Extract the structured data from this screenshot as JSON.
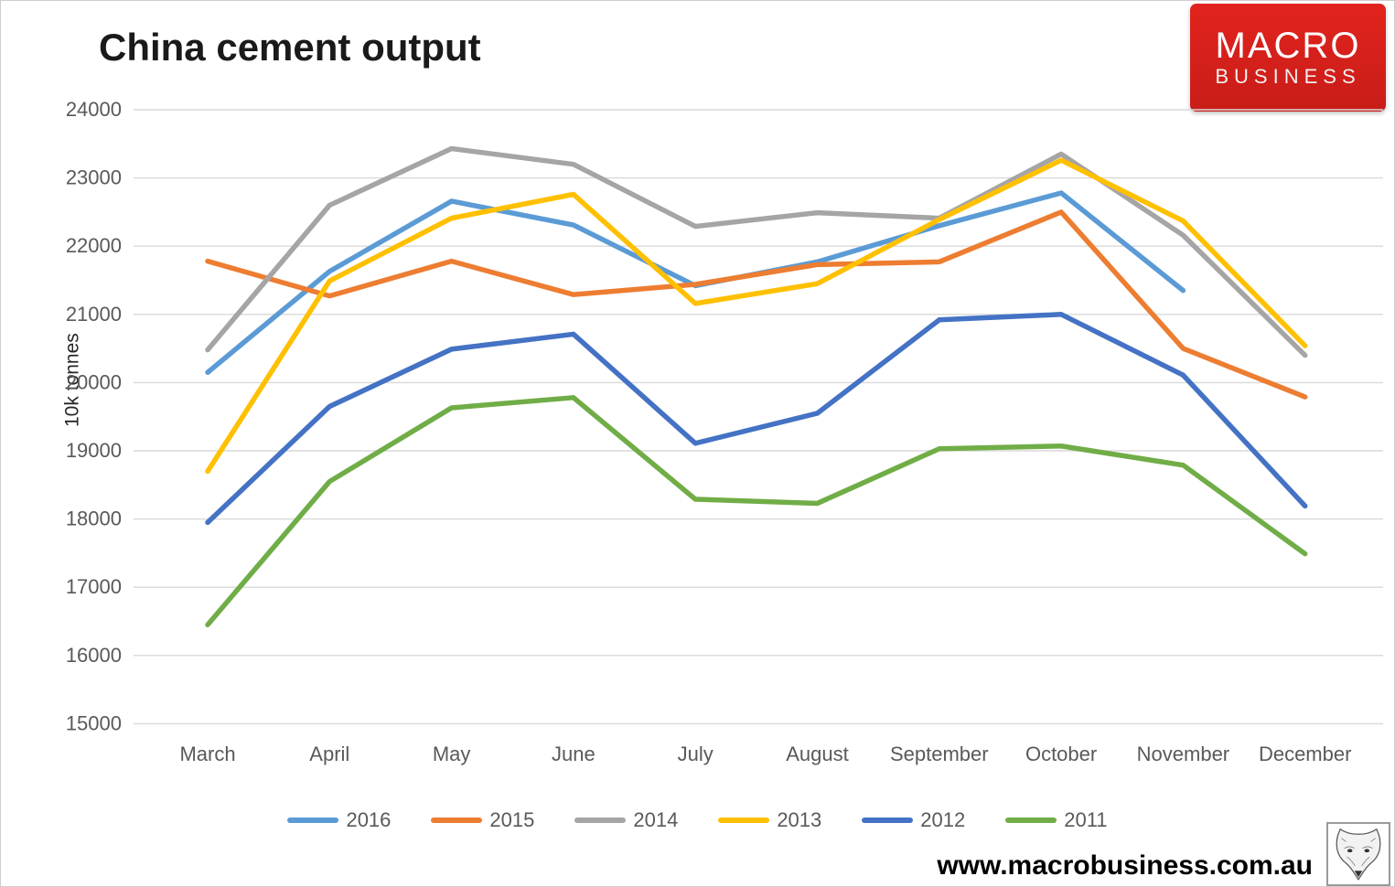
{
  "title": "China cement output",
  "logo": {
    "line1": "MACRO",
    "line2": "BUSINESS",
    "bg_color": "#e2231d"
  },
  "footer": {
    "website": "www.macrobusiness.com.au"
  },
  "icons": {
    "bottom_right": "wolf-sketch-logo"
  },
  "chart_data": {
    "type": "line",
    "title": "China cement output",
    "xlabel": "",
    "ylabel": "10k tonnes",
    "ylim": [
      15000,
      24000
    ],
    "yticks": [
      15000,
      16000,
      17000,
      18000,
      19000,
      20000,
      21000,
      22000,
      23000,
      24000
    ],
    "grid": true,
    "gridline_color": "#d9d9d9",
    "axis_label_color": "#595959",
    "legend_position": "bottom",
    "categories": [
      "March",
      "April",
      "May",
      "June",
      "July",
      "August",
      "September",
      "October",
      "November",
      "December"
    ],
    "series": [
      {
        "name": "2016",
        "color": "#5B9BD5",
        "values": [
          20150,
          21630,
          22660,
          22310,
          21420,
          21770,
          22300,
          22780,
          21350,
          null
        ]
      },
      {
        "name": "2015",
        "color": "#ED7D31",
        "values": [
          21780,
          21270,
          21780,
          21290,
          21440,
          21730,
          21770,
          22500,
          20500,
          19790
        ]
      },
      {
        "name": "2014",
        "color": "#A5A5A5",
        "values": [
          20480,
          22600,
          23430,
          23200,
          22290,
          22490,
          22410,
          23350,
          22160,
          20400
        ]
      },
      {
        "name": "2013",
        "color": "#FFC000",
        "values": [
          18700,
          21490,
          22410,
          22760,
          21160,
          21450,
          22390,
          23260,
          22370,
          20540
        ]
      },
      {
        "name": "2012",
        "color": "#4472C4",
        "values": [
          17950,
          19650,
          20490,
          20710,
          19110,
          19550,
          20920,
          21000,
          20110,
          18190
        ]
      },
      {
        "name": "2011",
        "color": "#70AD47",
        "values": [
          16450,
          18550,
          19630,
          19780,
          18290,
          18230,
          19030,
          19070,
          18790,
          17490
        ]
      }
    ]
  }
}
